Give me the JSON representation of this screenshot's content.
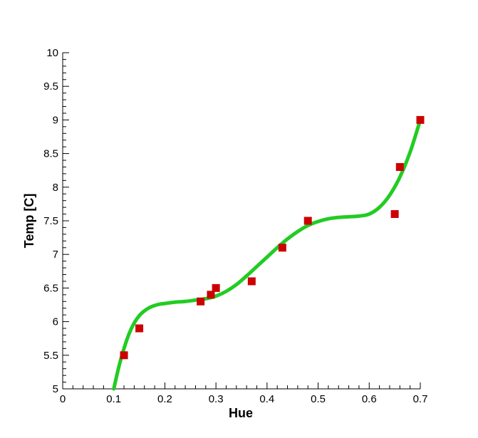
{
  "chart_data": {
    "type": "scatter",
    "title": "",
    "xlabel": "Hue",
    "ylabel": "Temp [C]",
    "xlim": [
      0,
      0.7
    ],
    "ylim": [
      5,
      10
    ],
    "x_ticks": [
      "0",
      "0.1",
      "0.2",
      "0.3",
      "0.4",
      "0.5",
      "0.6",
      "0.7"
    ],
    "y_ticks": [
      "5",
      "5.5",
      "6",
      "6.5",
      "7",
      "7.5",
      "8",
      "8.5",
      "9",
      "9.5",
      "10"
    ],
    "grid": false,
    "legend": "none",
    "series": [
      {
        "kind": "points",
        "marker": "square",
        "color": "#cc0000",
        "x": [
          0.12,
          0.15,
          0.27,
          0.29,
          0.3,
          0.37,
          0.43,
          0.48,
          0.65,
          0.66,
          0.7
        ],
        "y": [
          5.5,
          5.9,
          6.3,
          6.4,
          6.5,
          6.6,
          7.1,
          7.5,
          7.6,
          8.3,
          9.0
        ]
      },
      {
        "kind": "fit-curve",
        "color": "#22cc22",
        "x": [
          0.1,
          0.11,
          0.12,
          0.13,
          0.14,
          0.15,
          0.16,
          0.17,
          0.18,
          0.19,
          0.2,
          0.22,
          0.24,
          0.26,
          0.28,
          0.3,
          0.32,
          0.34,
          0.36,
          0.38,
          0.4,
          0.42,
          0.44,
          0.46,
          0.48,
          0.5,
          0.52,
          0.54,
          0.56,
          0.58,
          0.6,
          0.62,
          0.64,
          0.66,
          0.68,
          0.7
        ],
        "y": [
          5.0,
          5.33,
          5.6,
          5.82,
          5.98,
          6.09,
          6.16,
          6.21,
          6.24,
          6.26,
          6.27,
          6.29,
          6.3,
          6.32,
          6.34,
          6.38,
          6.45,
          6.55,
          6.68,
          6.82,
          6.96,
          7.1,
          7.23,
          7.34,
          7.43,
          7.49,
          7.53,
          7.55,
          7.56,
          7.57,
          7.6,
          7.7,
          7.88,
          8.15,
          8.52,
          9.0
        ]
      }
    ]
  }
}
